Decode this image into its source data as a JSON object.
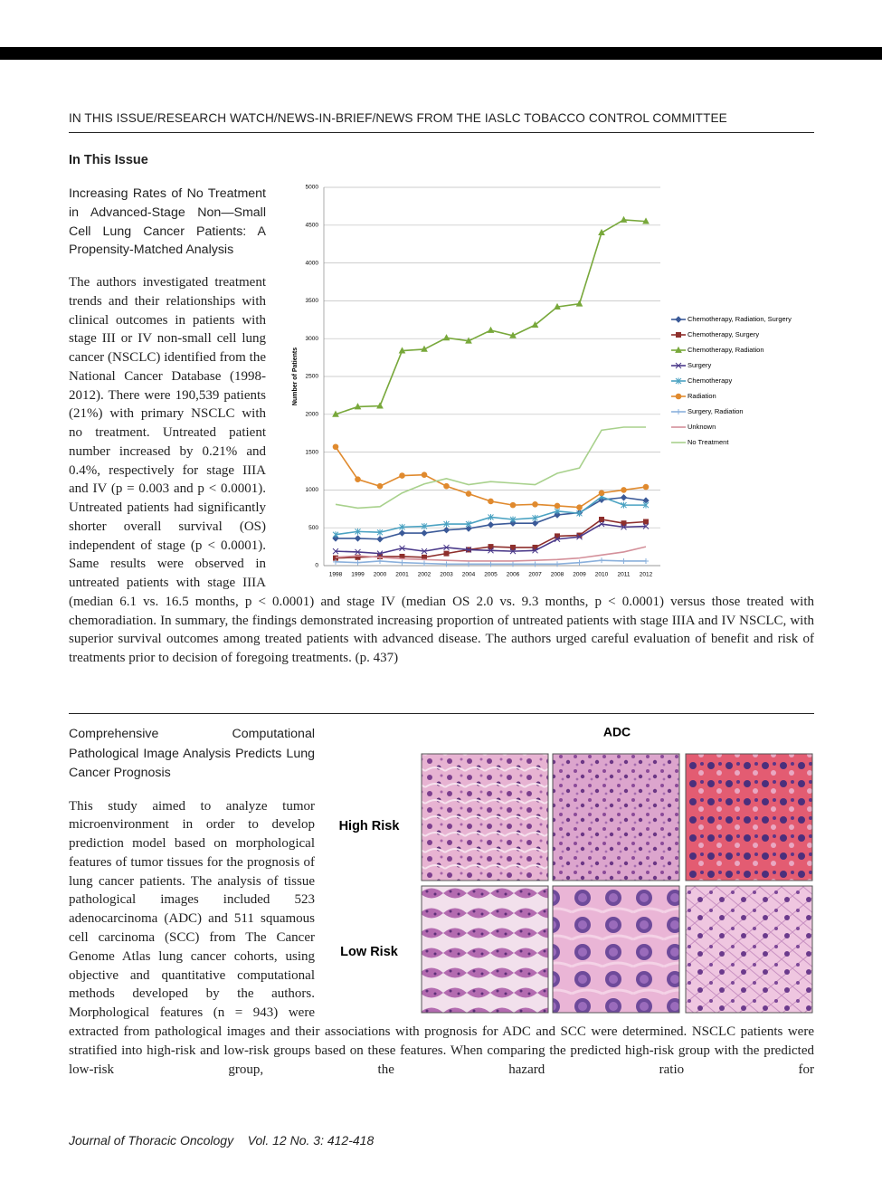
{
  "header": {
    "running_title": "IN THIS ISSUE/RESEARCH WATCH/NEWS-IN-BRIEF/NEWS FROM THE IASLC TOBACCO CONTROL COMMITTEE"
  },
  "section_title": "In This Issue",
  "articles": [
    {
      "title": "Increasing Rates of No Treatment in Advanced-Stage Non—Small Cell Lung Cancer Patients: A Propensity-Matched Analysis",
      "body": "The authors investigated treatment trends and their relationships with clinical outcomes in patients with stage III or IV non-small cell lung cancer (NSCLC) identified from the National Cancer Database (1998-2012). There were 190,539 patients (21%) with primary NSCLC with no treatment. Untreated patient number increased by 0.21% and 0.4%, respectively for stage IIIA and IV (p = 0.003 and p < 0.0001). Untreated patients had significantly shorter overall survival (OS) independent of stage (p < 0.0001). Same results were observed in untreated patients with stage IIIA (median 6.1 vs. 16.5 months, p < 0.0001) and stage IV (median OS 2.0 vs. 9.3 months, p < 0.0001) versus those treated with chemoradiation. In summary, the findings demonstrated increasing proportion of untreated patients with stage IIIA and IV NSCLC, with superior survival outcomes among treated patients with advanced disease. The authors urged careful evaluation of benefit and risk of treatments prior to decision of foregoing treatments. (p. 437)"
    },
    {
      "title": "Comprehensive Computational Pathological Image Analysis Predicts Lung Cancer Prognosis",
      "body": "This study aimed to analyze tumor microenvironment in order to develop prediction model based on morphological features of tumor tissues for the prognosis of lung cancer patients. The analysis of tissue pathological images included 523 adenocarcinoma (ADC) and 511 squamous cell carcinoma (SCC) from The Cancer Genome Atlas lung cancer cohorts, using objective and quantitative computational methods developed by the authors. Morphological features (n = 943) were extracted from pathological images and their associations with prognosis for ADC and SCC were determined. NSCLC patients were stratified into high-risk and low-risk groups based on these features. When comparing the predicted high-risk group with the predicted low-risk group, the hazard ratio for",
      "figure": {
        "title": "ADC",
        "row_labels": [
          "High Risk",
          "Low Risk"
        ]
      }
    }
  ],
  "chart_data": {
    "type": "line",
    "y_label": "Number of Patients",
    "categories": [
      "1998",
      "1999",
      "2000",
      "2001",
      "2002",
      "2003",
      "2004",
      "2005",
      "2006",
      "2007",
      "2008",
      "2009",
      "2010",
      "2011",
      "2012"
    ],
    "ylim": [
      0,
      5000
    ],
    "yticks": [
      0,
      500,
      1000,
      1500,
      2000,
      2500,
      3000,
      3500,
      4000,
      4500,
      5000
    ],
    "grid": true,
    "series": [
      {
        "name": "Chemotherapy, Radiation, Surgery",
        "color": "#3b5a98",
        "marker": "diamond",
        "values": [
          360,
          360,
          350,
          430,
          430,
          470,
          490,
          540,
          560,
          560,
          670,
          700,
          870,
          900,
          860
        ]
      },
      {
        "name": "Chemotherapy, Surgery",
        "color": "#8e2f2c",
        "marker": "square",
        "values": [
          100,
          110,
          120,
          120,
          110,
          160,
          210,
          250,
          240,
          240,
          390,
          400,
          610,
          560,
          580
        ]
      },
      {
        "name": "Chemotherapy, Radiation",
        "color": "#78a83b",
        "marker": "triangle",
        "values": [
          2000,
          2100,
          2110,
          2840,
          2860,
          3010,
          2970,
          3110,
          3040,
          3180,
          3420,
          3460,
          4400,
          4570,
          4550
        ]
      },
      {
        "name": "Surgery",
        "color": "#4b3a8a",
        "marker": "x",
        "values": [
          190,
          180,
          160,
          230,
          190,
          240,
          210,
          200,
          190,
          200,
          350,
          380,
          550,
          510,
          520
        ]
      },
      {
        "name": "Chemotherapy",
        "color": "#4aa2c2",
        "marker": "star",
        "values": [
          410,
          450,
          440,
          510,
          520,
          550,
          550,
          640,
          610,
          630,
          720,
          690,
          910,
          800,
          800
        ]
      },
      {
        "name": "Radiation",
        "color": "#e08a2e",
        "marker": "circle",
        "values": [
          1570,
          1140,
          1050,
          1190,
          1200,
          1050,
          950,
          850,
          800,
          810,
          790,
          770,
          960,
          1000,
          1040
        ]
      },
      {
        "name": "Surgery, Radiation",
        "color": "#8ab0dc",
        "marker": "plus",
        "values": [
          50,
          40,
          60,
          40,
          30,
          20,
          20,
          20,
          20,
          20,
          20,
          40,
          70,
          60,
          60
        ]
      },
      {
        "name": "Unknown",
        "color": "#d4909a",
        "marker": "none",
        "values": [
          110,
          130,
          110,
          90,
          80,
          70,
          60,
          60,
          60,
          70,
          80,
          100,
          140,
          180,
          250
        ]
      },
      {
        "name": "No Treatment",
        "color": "#a8d18c",
        "marker": "none",
        "values": [
          810,
          760,
          780,
          960,
          1080,
          1150,
          1070,
          1110,
          1090,
          1070,
          1220,
          1290,
          1790,
          1830,
          1830
        ]
      }
    ]
  },
  "footer": {
    "journal": "Journal of Thoracic Oncology",
    "citation": "Vol. 12 No. 3: 412-418"
  }
}
